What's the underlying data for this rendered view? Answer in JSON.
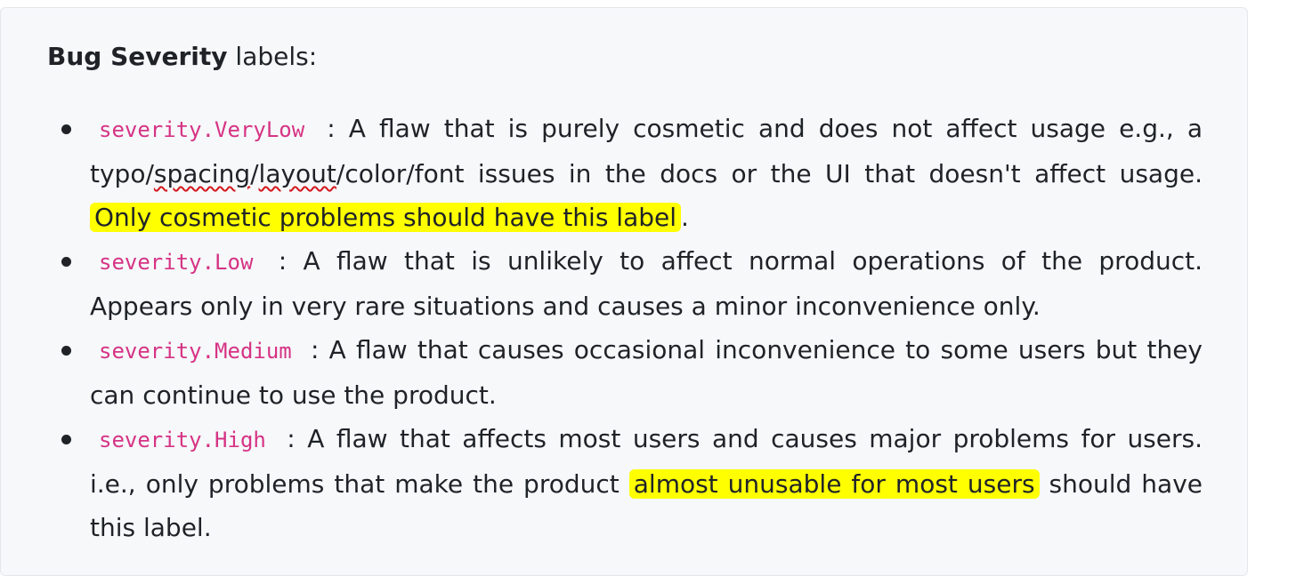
{
  "heading": {
    "bold": "Bug Severity",
    "rest": " labels:"
  },
  "items": [
    {
      "code": "severity.VeryLow",
      "text_1": " : A flaw that is purely cosmetic and does not affect usage e.g., a typo/",
      "flagged_1": "spacing",
      "sep": "/",
      "flagged_2": "layout",
      "text_2": "/color/font issues in the docs or the UI that doesn't affect usage. ",
      "highlight": "Only cosmetic problems should have this label",
      "text_3": "."
    },
    {
      "code": "severity.Low",
      "text_1": " : A flaw that is unlikely to affect normal operations of the product. Appears only in very rare situations and causes a minor inconvenience only."
    },
    {
      "code": "severity.Medium",
      "text_1": " : A flaw that causes occasional inconvenience to some users but they can continue to use the product."
    },
    {
      "code": "severity.High",
      "text_1": " : A flaw that affects most users and causes major problems for users. i.e., only problems that make the product ",
      "highlight": "almost unusable for most users",
      "text_2": " should have this label."
    }
  ],
  "colors": {
    "panel_bg": "#f6f8fa",
    "text": "#1f2328",
    "code": "#d63384",
    "highlight": "#ffff00",
    "spellcheck": "#d4161c"
  }
}
